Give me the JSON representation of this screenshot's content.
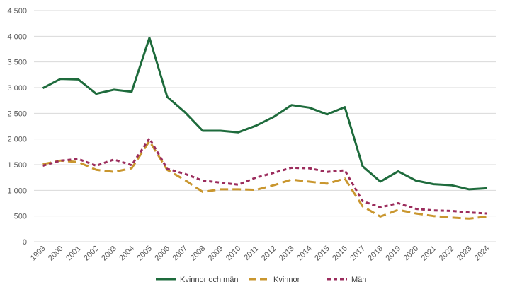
{
  "chart_data": {
    "type": "line",
    "x": [
      "1999",
      "2000",
      "2001",
      "2002",
      "2003",
      "2004",
      "2005",
      "2006",
      "2007",
      "2008",
      "2009",
      "2010",
      "2011",
      "2012",
      "2013",
      "2014",
      "2015",
      "2016",
      "2017",
      "2018",
      "2019",
      "2020",
      "2021",
      "2022",
      "2023",
      "2024"
    ],
    "ylim": [
      0,
      4500
    ],
    "yticks": [
      0,
      500,
      1000,
      1500,
      2000,
      2500,
      3000,
      3500,
      4000,
      4500
    ],
    "ytick_labels": [
      "0",
      "500",
      "1 000",
      "1 500",
      "2 000",
      "2 500",
      "3 000",
      "3 500",
      "4 000",
      "4 500"
    ],
    "grid": true,
    "legend_position": "bottom",
    "series": [
      {
        "name": "Kvinnor och män",
        "color": "#1e6b3c",
        "dash": "solid",
        "values": [
          2990,
          3170,
          3160,
          2880,
          2960,
          2920,
          3970,
          2820,
          2520,
          2160,
          2160,
          2130,
          2260,
          2430,
          2660,
          2610,
          2480,
          2620,
          1470,
          1170,
          1370,
          1190,
          1120,
          1100,
          1020,
          1040
        ]
      },
      {
        "name": "Kvinnor",
        "color": "#c9962e",
        "dash": "long-dash",
        "values": [
          1510,
          1580,
          1550,
          1400,
          1360,
          1430,
          1960,
          1400,
          1200,
          970,
          1020,
          1020,
          1010,
          1100,
          1210,
          1170,
          1130,
          1230,
          690,
          490,
          620,
          550,
          500,
          470,
          450,
          490
        ]
      },
      {
        "name": "Män",
        "color": "#9b2c5c",
        "dash": "short-dash",
        "values": [
          1480,
          1580,
          1610,
          1480,
          1600,
          1490,
          2010,
          1420,
          1320,
          1190,
          1150,
          1110,
          1250,
          1340,
          1440,
          1430,
          1360,
          1390,
          790,
          670,
          750,
          640,
          610,
          600,
          570,
          550
        ]
      }
    ]
  }
}
